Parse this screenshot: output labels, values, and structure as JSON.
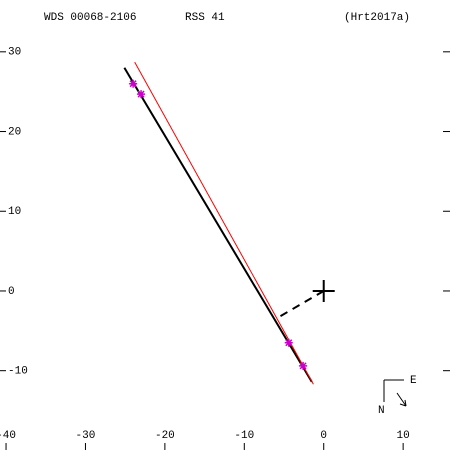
{
  "chart_data": {
    "type": "orbit",
    "title": "WDS 00068-2106",
    "subtitle": "RSS  41",
    "reference": "(Hrt2017a)",
    "compass": {
      "east": "E",
      "north": "N"
    },
    "xlim": [
      -40.76,
      15.9
    ],
    "ylim": [
      -19.95,
      36.5
    ],
    "xticks": [
      -40,
      -30,
      -20,
      -10,
      0,
      10
    ],
    "yticks": [
      -10,
      0,
      10,
      20,
      30
    ],
    "series": [
      {
        "type": "line",
        "color": "#000000",
        "x": [
          -25.1,
          -1.5
        ],
        "y": [
          28.0,
          -11.4
        ]
      },
      {
        "type": "line",
        "color": "#ff0000",
        "x": [
          -23.8,
          -1.3
        ],
        "y": [
          28.7,
          -11.7
        ]
      },
      {
        "type": "scatter",
        "color": "#cc00cc",
        "x": [
          -24.0,
          -23.0,
          -4.4,
          -2.6
        ],
        "y": [
          26.0,
          24.7,
          -6.5,
          -9.4
        ]
      },
      {
        "type": "dashed",
        "color": "#000000",
        "x": [
          0,
          -5.7
        ],
        "y": [
          0,
          -3.3
        ]
      },
      {
        "type": "cross",
        "color": "#000000",
        "x": [
          0
        ],
        "y": [
          0
        ]
      }
    ]
  }
}
